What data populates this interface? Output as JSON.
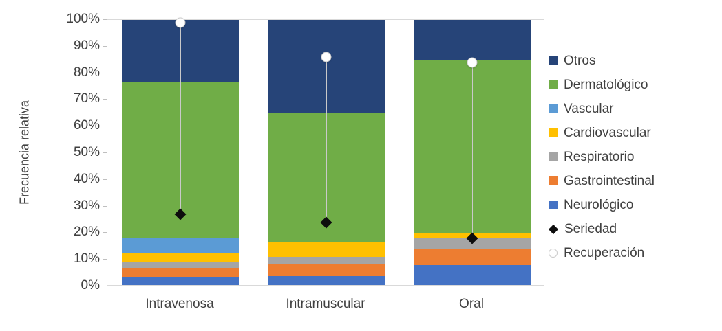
{
  "chart_data": {
    "type": "bar",
    "stacked": true,
    "ylabel": "Frecuencia relativa",
    "ylim": [
      0,
      100
    ],
    "grid": false,
    "legend_position": "right",
    "yticks": [
      "0%",
      "10%",
      "20%",
      "30%",
      "40%",
      "50%",
      "60%",
      "70%",
      "80%",
      "90%",
      "100%"
    ],
    "categories": [
      "Intravenosa",
      "Intramuscular",
      "Oral"
    ],
    "series": [
      {
        "name": "Neurológico",
        "color": "#4472C4",
        "values": [
          3,
          3.5,
          7.5
        ]
      },
      {
        "name": "Gastrointestinal",
        "color": "#ED7D31",
        "values": [
          3.5,
          4.5,
          6
        ]
      },
      {
        "name": "Respiratorio",
        "color": "#A5A5A5",
        "values": [
          2,
          2.5,
          4.5
        ]
      },
      {
        "name": "Cardiovascular",
        "color": "#FFC000",
        "values": [
          3.5,
          5.5,
          1.5
        ]
      },
      {
        "name": "Vascular",
        "color": "#5B9BD5",
        "values": [
          5.5,
          0,
          0
        ]
      },
      {
        "name": "Dermatológico",
        "color": "#70AD47",
        "values": [
          59,
          49,
          65.5
        ]
      },
      {
        "name": "Otros",
        "color": "#264478",
        "values": [
          23.5,
          35,
          15
        ]
      }
    ],
    "point_series": [
      {
        "name": "Seriedad",
        "marker": "diamond",
        "fill": "#0D0D0D",
        "stroke": "#0D0D0D",
        "values": [
          27,
          24,
          18
        ]
      },
      {
        "name": "Recuperación",
        "marker": "circle",
        "fill": "#FFFFFF",
        "stroke": "#C9C9C9",
        "values": [
          99,
          86,
          84
        ]
      }
    ],
    "legend_order": [
      "Otros",
      "Dermatológico",
      "Vascular",
      "Cardiovascular",
      "Respiratorio",
      "Gastrointestinal",
      "Neurológico",
      "Seriedad",
      "Recuperación"
    ],
    "connector_color": "#C9C9C9",
    "axis_text_color": "#404040",
    "plot_border_color": "#D9D9D9"
  }
}
